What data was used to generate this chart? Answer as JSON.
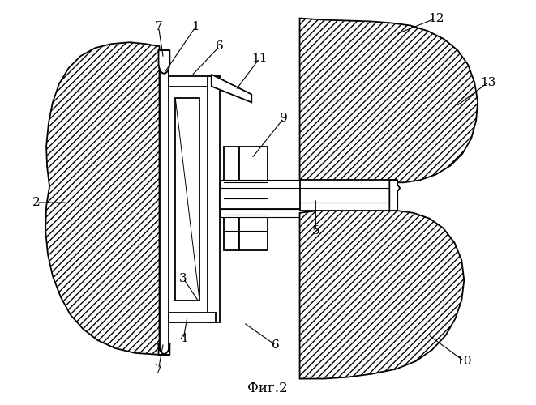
{
  "title": "Фиг.2",
  "bg": "#ffffff",
  "figsize": [
    6.61,
    5.0
  ],
  "dpi": 100,
  "lw_main": 1.3,
  "lw_thin": 0.8,
  "hatch": "////",
  "label_fs": 11
}
